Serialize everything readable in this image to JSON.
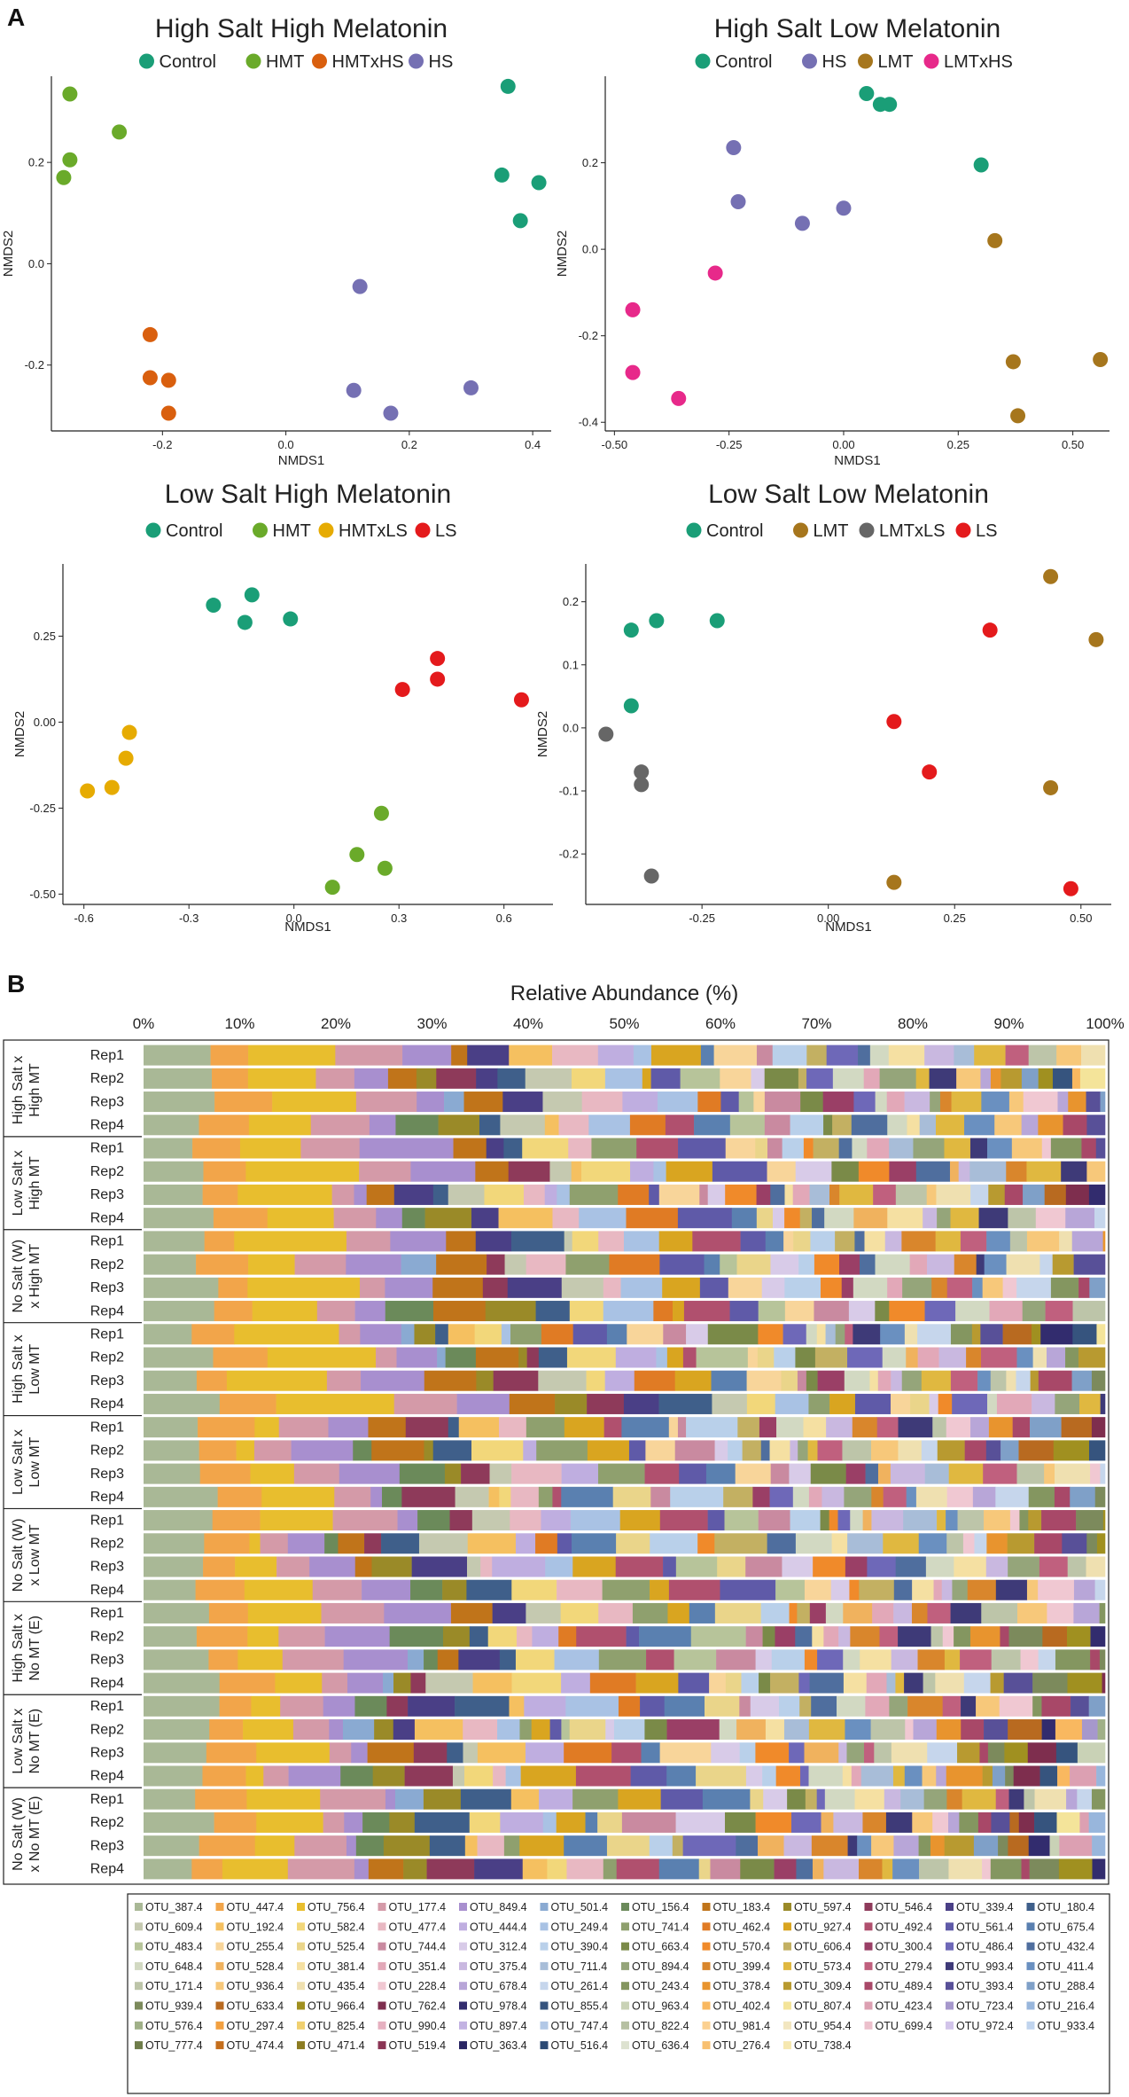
{
  "panel_labels": {
    "a": "A",
    "b": "B"
  },
  "colors": {
    "Control": "#1a9e77",
    "HMT": "#6aaa2a",
    "HMTxHS": "#d95f0e",
    "HS": "#7570b3",
    "LMT": "#a6761d",
    "LMTxHS": "#e7298a",
    "HMTxLS": "#e6ab02",
    "LS": "#e41a1c",
    "LMTxLS": "#666666"
  },
  "chart_data": [
    {
      "type": "scatter",
      "title": "High Salt High Melatonin",
      "xlabel": "NMDS1",
      "ylabel": "NMDS2",
      "xlim": [
        -0.38,
        0.43
      ],
      "ylim": [
        -0.33,
        0.37
      ],
      "xticks": [
        "-0.2",
        "0.0",
        "0.2",
        "0.4"
      ],
      "xtick_values": [
        -0.2,
        0.0,
        0.2,
        0.4
      ],
      "yticks": [
        "-0.2",
        "0.0",
        "0.2"
      ],
      "ytick_values": [
        -0.2,
        0.0,
        0.2
      ],
      "legend": [
        "Control",
        "HMT",
        "HMTxHS",
        "HS"
      ],
      "series": [
        {
          "name": "Control",
          "x": [
            0.36,
            0.35,
            0.41,
            0.38
          ],
          "y": [
            0.35,
            0.175,
            0.16,
            0.085
          ]
        },
        {
          "name": "HMT",
          "x": [
            -0.35,
            -0.35,
            -0.36,
            -0.27
          ],
          "y": [
            0.335,
            0.205,
            0.17,
            0.26
          ]
        },
        {
          "name": "HMTxHS",
          "x": [
            -0.22,
            -0.22,
            -0.19,
            -0.19
          ],
          "y": [
            -0.14,
            -0.225,
            -0.23,
            -0.295
          ]
        },
        {
          "name": "HS",
          "x": [
            0.12,
            0.11,
            0.17,
            0.3
          ],
          "y": [
            -0.045,
            -0.25,
            -0.295,
            -0.245
          ]
        }
      ]
    },
    {
      "type": "scatter",
      "title": "High Salt Low Melatonin",
      "xlabel": "NMDS1",
      "ylabel": "NMDS2",
      "xlim": [
        -0.52,
        0.58
      ],
      "ylim": [
        -0.42,
        0.4
      ],
      "xticks": [
        "-0.50",
        "-0.25",
        "0.00",
        "0.25",
        "0.50"
      ],
      "xtick_values": [
        -0.5,
        -0.25,
        0.0,
        0.25,
        0.5
      ],
      "yticks": [
        "-0.4",
        "-0.2",
        "0.0",
        "0.2"
      ],
      "ytick_values": [
        -0.4,
        -0.2,
        0.0,
        0.2
      ],
      "legend": [
        "Control",
        "HS",
        "LMT",
        "LMTxHS"
      ],
      "series": [
        {
          "name": "Control",
          "x": [
            0.05,
            0.08,
            0.1,
            0.3
          ],
          "y": [
            0.36,
            0.335,
            0.335,
            0.195
          ]
        },
        {
          "name": "HS",
          "x": [
            -0.24,
            -0.23,
            -0.09,
            0.0
          ],
          "y": [
            0.235,
            0.11,
            0.06,
            0.095
          ]
        },
        {
          "name": "LMT",
          "x": [
            0.33,
            0.37,
            0.38,
            0.56
          ],
          "y": [
            0.02,
            -0.26,
            -0.385,
            -0.255
          ]
        },
        {
          "name": "LMTxHS",
          "x": [
            -0.28,
            -0.46,
            -0.46,
            -0.36
          ],
          "y": [
            -0.055,
            -0.14,
            -0.285,
            -0.345
          ]
        }
      ]
    },
    {
      "type": "scatter",
      "title": "Low Salt High Melatonin",
      "xlabel": "NMDS1",
      "ylabel": "NMDS2",
      "xlim": [
        -0.66,
        0.74
      ],
      "ylim": [
        -0.53,
        0.46
      ],
      "xticks": [
        "-0.6",
        "-0.3",
        "0.0",
        "0.3",
        "0.6"
      ],
      "xtick_values": [
        -0.6,
        -0.3,
        0.0,
        0.3,
        0.6
      ],
      "yticks": [
        "-0.50",
        "-0.25",
        "0.00",
        "0.25"
      ],
      "ytick_values": [
        -0.5,
        -0.25,
        0.0,
        0.25
      ],
      "legend": [
        "Control",
        "HMT",
        "HMTxLS",
        "LS"
      ],
      "series": [
        {
          "name": "Control",
          "x": [
            -0.23,
            -0.12,
            -0.14,
            -0.01
          ],
          "y": [
            0.34,
            0.37,
            0.29,
            0.3
          ]
        },
        {
          "name": "HMT",
          "x": [
            0.25,
            0.18,
            0.11,
            0.26
          ],
          "y": [
            -0.265,
            -0.385,
            -0.48,
            -0.425
          ]
        },
        {
          "name": "HMTxLS",
          "x": [
            -0.47,
            -0.48,
            -0.52,
            -0.59
          ],
          "y": [
            -0.03,
            -0.105,
            -0.19,
            -0.2
          ]
        },
        {
          "name": "LS",
          "x": [
            0.41,
            0.41,
            0.31,
            0.65
          ],
          "y": [
            0.185,
            0.125,
            0.095,
            0.065
          ]
        }
      ]
    },
    {
      "type": "scatter",
      "title": "Low Salt Low Melatonin",
      "xlabel": "NMDS1",
      "ylabel": "NMDS2",
      "xlim": [
        -0.48,
        0.56
      ],
      "ylim": [
        -0.28,
        0.26
      ],
      "xticks": [
        "-0.25",
        "0.00",
        "0.25",
        "0.50"
      ],
      "xtick_values": [
        -0.25,
        0.0,
        0.25,
        0.5
      ],
      "yticks": [
        "-0.2",
        "-0.1",
        "0.0",
        "0.1",
        "0.2"
      ],
      "ytick_values": [
        -0.2,
        -0.1,
        0.0,
        0.1,
        0.2
      ],
      "legend": [
        "Control",
        "LMT",
        "LMTxLS",
        "LS"
      ],
      "series": [
        {
          "name": "Control",
          "x": [
            -0.39,
            -0.34,
            -0.22,
            -0.39
          ],
          "y": [
            0.155,
            0.17,
            0.17,
            0.035
          ]
        },
        {
          "name": "LMT",
          "x": [
            0.44,
            0.53,
            0.44,
            0.13
          ],
          "y": [
            0.24,
            0.14,
            -0.095,
            -0.245
          ]
        },
        {
          "name": "LMTxLS",
          "x": [
            -0.44,
            -0.37,
            -0.37,
            -0.35
          ],
          "y": [
            -0.01,
            -0.07,
            -0.09,
            -0.235
          ]
        },
        {
          "name": "LS",
          "x": [
            0.32,
            0.13,
            0.2,
            0.48
          ],
          "y": [
            0.155,
            0.01,
            -0.07,
            -0.255
          ]
        }
      ]
    },
    {
      "type": "bar",
      "orientation": "horizontal-stacked",
      "title": "Relative Abundance (%)",
      "xticks": [
        "0%",
        "10%",
        "20%",
        "30%",
        "40%",
        "50%",
        "60%",
        "70%",
        "80%",
        "90%",
        "100%"
      ],
      "xlim": [
        0,
        100
      ],
      "groups": [
        {
          "label": [
            "High Salt x",
            "High MT"
          ],
          "reps": [
            "Rep1",
            "Rep2",
            "Rep3",
            "Rep4"
          ]
        },
        {
          "label": [
            "Low Salt x",
            "High MT"
          ],
          "reps": [
            "Rep1",
            "Rep2",
            "Rep3",
            "Rep4"
          ]
        },
        {
          "label": [
            "No Salt (W)",
            "x High MT"
          ],
          "reps": [
            "Rep1",
            "Rep2",
            "Rep3",
            "Rep4"
          ]
        },
        {
          "label": [
            "High Salt x",
            "Low MT"
          ],
          "reps": [
            "Rep1",
            "Rep2",
            "Rep3",
            "Rep4"
          ]
        },
        {
          "label": [
            "Low Salt x",
            "Low MT"
          ],
          "reps": [
            "Rep1",
            "Rep2",
            "Rep3",
            "Rep4"
          ]
        },
        {
          "label": [
            "No Salt (W)",
            "x Low MT"
          ],
          "reps": [
            "Rep1",
            "Rep2",
            "Rep3",
            "Rep4"
          ]
        },
        {
          "label": [
            "High Salt x",
            "No MT (E)"
          ],
          "reps": [
            "Rep1",
            "Rep2",
            "Rep3",
            "Rep4"
          ]
        },
        {
          "label": [
            "Low Salt x",
            "No MT (E)"
          ],
          "reps": [
            "Rep1",
            "Rep2",
            "Rep3",
            "Rep4"
          ]
        },
        {
          "label": [
            "No Salt (W)",
            "x No MT (E)"
          ],
          "reps": [
            "Rep1",
            "Rep2",
            "Rep3",
            "Rep4"
          ]
        }
      ],
      "otus": [
        {
          "name": "OTU_387.4",
          "color": "#a9b896"
        },
        {
          "name": "OTU_447.4",
          "color": "#f2a54a"
        },
        {
          "name": "OTU_756.4",
          "color": "#e8be2e"
        },
        {
          "name": "OTU_177.4",
          "color": "#d49aa8"
        },
        {
          "name": "OTU_849.4",
          "color": "#a88fcf"
        },
        {
          "name": "OTU_501.4",
          "color": "#8aaad2"
        },
        {
          "name": "OTU_156.4",
          "color": "#6b8a5a"
        },
        {
          "name": "OTU_183.4",
          "color": "#c0741a"
        },
        {
          "name": "OTU_597.4",
          "color": "#9a8a28"
        },
        {
          "name": "OTU_546.4",
          "color": "#8e3a5a"
        },
        {
          "name": "OTU_339.4",
          "color": "#4a3f86"
        },
        {
          "name": "OTU_180.4",
          "color": "#3f5f8a"
        },
        {
          "name": "OTU_609.4",
          "color": "#c5c9b0"
        },
        {
          "name": "OTU_192.4",
          "color": "#f5c060"
        },
        {
          "name": "OTU_582.4",
          "color": "#f2d77a"
        },
        {
          "name": "OTU_477.4",
          "color": "#e8b8c2"
        },
        {
          "name": "OTU_444.4",
          "color": "#bfaee0"
        },
        {
          "name": "OTU_249.4",
          "color": "#a9c2e4"
        },
        {
          "name": "OTU_741.4",
          "color": "#8fa06e"
        },
        {
          "name": "OTU_462.4",
          "color": "#e07b24"
        },
        {
          "name": "OTU_927.4",
          "color": "#d9a520"
        },
        {
          "name": "OTU_492.4",
          "color": "#b0506e"
        },
        {
          "name": "OTU_561.4",
          "color": "#5f5aa8"
        },
        {
          "name": "OTU_675.4",
          "color": "#5a80b0"
        },
        {
          "name": "OTU_483.4",
          "color": "#b7c49a"
        },
        {
          "name": "OTU_255.4",
          "color": "#f8d59a"
        },
        {
          "name": "OTU_525.4",
          "color": "#ead58a"
        },
        {
          "name": "OTU_744.4",
          "color": "#c98aa0"
        },
        {
          "name": "OTU_312.4",
          "color": "#d8cbe8"
        },
        {
          "name": "OTU_390.4",
          "color": "#b9d0ea"
        },
        {
          "name": "OTU_663.4",
          "color": "#7a8a48"
        },
        {
          "name": "OTU_570.4",
          "color": "#f08a2a"
        },
        {
          "name": "OTU_606.4",
          "color": "#c3b062"
        },
        {
          "name": "OTU_300.4",
          "color": "#9a3f66"
        },
        {
          "name": "OTU_486.4",
          "color": "#6e68b8"
        },
        {
          "name": "OTU_432.4",
          "color": "#4f6e9e"
        },
        {
          "name": "OTU_648.4",
          "color": "#d2d9c2"
        },
        {
          "name": "OTU_528.4",
          "color": "#f0b25e"
        },
        {
          "name": "OTU_381.4",
          "color": "#f5e0a2"
        },
        {
          "name": "OTU_351.4",
          "color": "#e2a8b8"
        },
        {
          "name": "OTU_375.4",
          "color": "#c9b8e0"
        },
        {
          "name": "OTU_711.4",
          "color": "#a8bdd8"
        },
        {
          "name": "OTU_894.4",
          "color": "#95a57a"
        },
        {
          "name": "OTU_399.4",
          "color": "#d9862c"
        },
        {
          "name": "OTU_573.4",
          "color": "#e0b840"
        },
        {
          "name": "OTU_279.4",
          "color": "#c0607e"
        },
        {
          "name": "OTU_993.4",
          "color": "#3e3a78"
        },
        {
          "name": "OTU_411.4",
          "color": "#6a90c0"
        },
        {
          "name": "OTU_171.4",
          "color": "#bdc5a9"
        },
        {
          "name": "OTU_936.4",
          "color": "#f7c87a"
        },
        {
          "name": "OTU_435.4",
          "color": "#efe0b0"
        },
        {
          "name": "OTU_228.4",
          "color": "#f0c8d2"
        },
        {
          "name": "OTU_678.4",
          "color": "#b8a6d8"
        },
        {
          "name": "OTU_261.4",
          "color": "#c6d6ec"
        },
        {
          "name": "OTU_243.4",
          "color": "#849660"
        },
        {
          "name": "OTU_378.4",
          "color": "#e8942e"
        },
        {
          "name": "OTU_309.4",
          "color": "#b89a30"
        },
        {
          "name": "OTU_489.4",
          "color": "#a84868"
        },
        {
          "name": "OTU_393.4",
          "color": "#585098"
        },
        {
          "name": "OTU_288.4",
          "color": "#7fa0c8"
        },
        {
          "name": "OTU_939.4",
          "color": "#7c8a5c"
        },
        {
          "name": "OTU_633.4",
          "color": "#b86a20"
        },
        {
          "name": "OTU_966.4",
          "color": "#a09020"
        },
        {
          "name": "OTU_762.4",
          "color": "#7e2e4e"
        },
        {
          "name": "OTU_978.4",
          "color": "#322c6e"
        },
        {
          "name": "OTU_855.4",
          "color": "#36547e"
        },
        {
          "name": "OTU_963.4",
          "color": "#c9d2b6"
        },
        {
          "name": "OTU_402.4",
          "color": "#f9b860"
        },
        {
          "name": "OTU_807.4",
          "color": "#f4e49a"
        },
        {
          "name": "OTU_423.4",
          "color": "#dca0b2"
        },
        {
          "name": "OTU_723.4",
          "color": "#a698cc"
        },
        {
          "name": "OTU_216.4",
          "color": "#98b6dc"
        },
        {
          "name": "OTU_576.4",
          "color": "#a0b088"
        },
        {
          "name": "OTU_297.4",
          "color": "#f2a040"
        },
        {
          "name": "OTU_825.4",
          "color": "#f0d070"
        },
        {
          "name": "OTU_990.4",
          "color": "#e6b0c0"
        },
        {
          "name": "OTU_897.4",
          "color": "#c2b2e2"
        },
        {
          "name": "OTU_747.4",
          "color": "#b2c8e6"
        },
        {
          "name": "OTU_822.4",
          "color": "#b6c0a2"
        },
        {
          "name": "OTU_981.4",
          "color": "#fbd090"
        },
        {
          "name": "OTU_954.4",
          "color": "#f2e6c0"
        },
        {
          "name": "OTU_699.4",
          "color": "#ecc0cc"
        },
        {
          "name": "OTU_972.4",
          "color": "#d2c4ea"
        },
        {
          "name": "OTU_933.4",
          "color": "#c0d4ee"
        },
        {
          "name": "OTU_777.4",
          "color": "#6e7c4a"
        },
        {
          "name": "OTU_474.4",
          "color": "#c46e1c"
        },
        {
          "name": "OTU_471.4",
          "color": "#8c7c22"
        },
        {
          "name": "OTU_519.4",
          "color": "#8a3454"
        },
        {
          "name": "OTU_363.4",
          "color": "#2a2664"
        },
        {
          "name": "OTU_516.4",
          "color": "#2c4a74"
        },
        {
          "name": "OTU_636.4",
          "color": "#dde2d0"
        },
        {
          "name": "OTU_276.4",
          "color": "#f8c070"
        },
        {
          "name": "OTU_738.4",
          "color": "#f6e8b0"
        }
      ]
    }
  ]
}
